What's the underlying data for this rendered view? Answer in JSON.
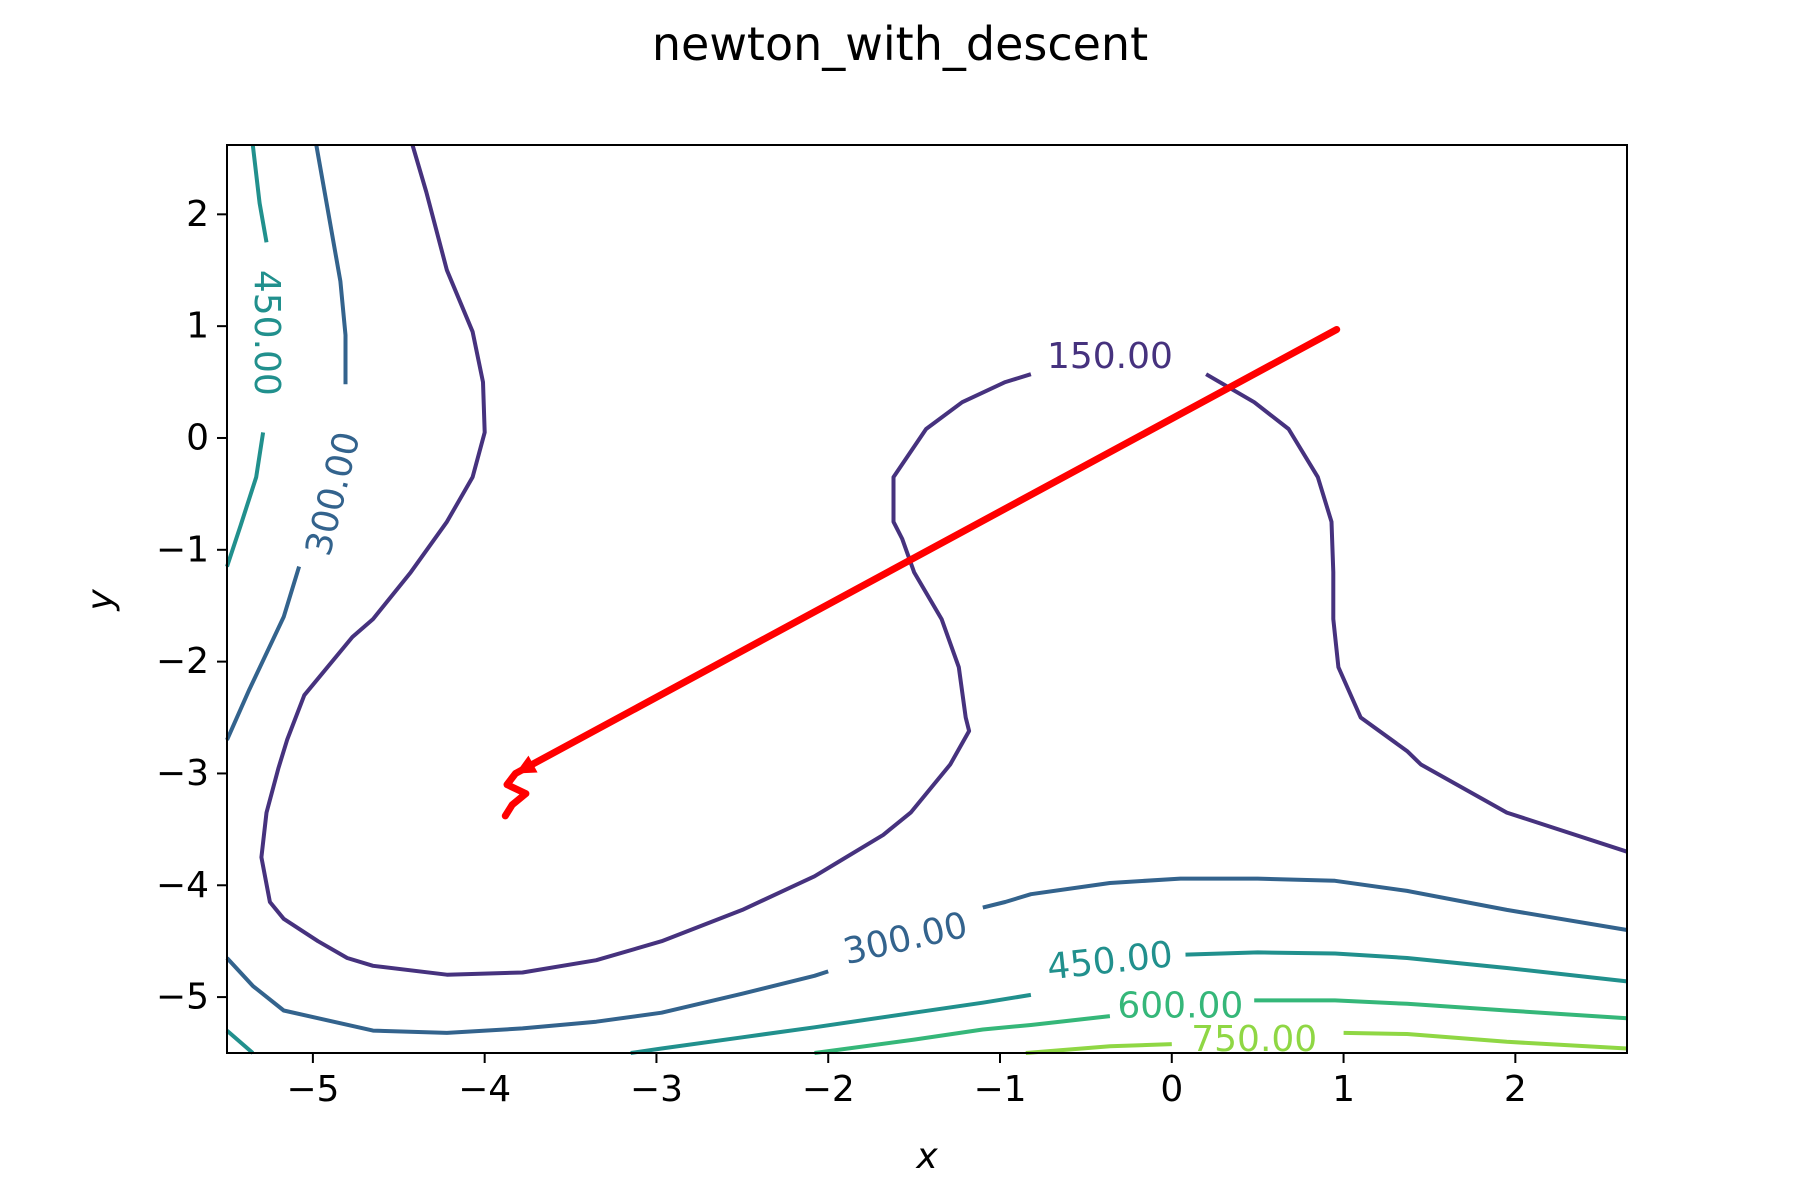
{
  "chart_data": {
    "type": "contour",
    "title": "newton_with_descent",
    "xlabel": "x",
    "ylabel": "y",
    "xlim": [
      -5.5,
      2.65
    ],
    "ylim": [
      -5.5,
      2.62
    ],
    "xticks": [
      {
        "value": -5,
        "label": "−5"
      },
      {
        "value": -4,
        "label": "−4"
      },
      {
        "value": -3,
        "label": "−3"
      },
      {
        "value": -2,
        "label": "−2"
      },
      {
        "value": -1,
        "label": "−1"
      },
      {
        "value": 0,
        "label": "0"
      },
      {
        "value": 1,
        "label": "1"
      },
      {
        "value": 2,
        "label": "2"
      }
    ],
    "yticks": [
      {
        "value": -5,
        "label": "−5"
      },
      {
        "value": -4,
        "label": "−4"
      },
      {
        "value": -3,
        "label": "−3"
      },
      {
        "value": -2,
        "label": "−2"
      },
      {
        "value": -1,
        "label": "−1"
      },
      {
        "value": 0,
        "label": "0"
      },
      {
        "value": 1,
        "label": "1"
      },
      {
        "value": 2,
        "label": "2"
      }
    ],
    "grid": false,
    "levels": [
      {
        "level": 150,
        "label": "150.00",
        "color": "#46327e",
        "paths": [
          [
            [
              -4.42,
              2.62
            ],
            [
              -4.34,
              2.2
            ],
            [
              -4.22,
              1.5
            ],
            [
              -4.07,
              0.95
            ],
            [
              -4.01,
              0.5
            ],
            [
              -4.0,
              0.05
            ],
            [
              -4.07,
              -0.35
            ],
            [
              -4.22,
              -0.75
            ],
            [
              -4.43,
              -1.2
            ],
            [
              -4.65,
              -1.62
            ],
            [
              -4.77,
              -1.78
            ],
            [
              -5.05,
              -2.3
            ],
            [
              -5.15,
              -2.7
            ],
            [
              -5.2,
              -2.95
            ],
            [
              -5.27,
              -3.35
            ],
            [
              -5.3,
              -3.75
            ],
            [
              -5.25,
              -4.15
            ],
            [
              -5.17,
              -4.3
            ],
            [
              -4.97,
              -4.5
            ],
            [
              -4.8,
              -4.65
            ],
            [
              -4.65,
              -4.72
            ],
            [
              -4.22,
              -4.8
            ],
            [
              -3.78,
              -4.78
            ],
            [
              -3.35,
              -4.67
            ],
            [
              -2.97,
              -4.5
            ],
            [
              -2.5,
              -4.22
            ],
            [
              -2.08,
              -3.92
            ],
            [
              -1.95,
              -3.8
            ],
            [
              -1.68,
              -3.55
            ],
            [
              -1.52,
              -3.35
            ],
            [
              -1.29,
              -2.92
            ],
            [
              -1.18,
              -2.62
            ],
            [
              -1.2,
              -2.5
            ],
            [
              -1.24,
              -2.05
            ],
            [
              -1.34,
              -1.62
            ],
            [
              -1.5,
              -1.2
            ],
            [
              -1.57,
              -0.9
            ],
            [
              -1.62,
              -0.75
            ],
            [
              -1.62,
              -0.35
            ],
            [
              -1.43,
              0.08
            ],
            [
              -1.22,
              0.32
            ],
            [
              -0.97,
              0.5
            ],
            [
              -0.82,
              0.57
            ]
          ],
          [
            [
              0.2,
              0.57
            ],
            [
              0.48,
              0.32
            ],
            [
              0.68,
              0.08
            ],
            [
              0.85,
              -0.35
            ],
            [
              0.93,
              -0.75
            ],
            [
              0.94,
              -1.2
            ],
            [
              0.94,
              -1.62
            ],
            [
              0.97,
              -2.05
            ],
            [
              1.1,
              -2.5
            ],
            [
              1.37,
              -2.8
            ],
            [
              1.45,
              -2.92
            ],
            [
              1.95,
              -3.35
            ],
            [
              2.65,
              -3.7
            ]
          ]
        ],
        "labels_at": [
          {
            "x": -0.36,
            "y": 0.73,
            "rotate": 0
          }
        ]
      },
      {
        "level": 300,
        "label": "300.00",
        "color": "#33638d",
        "paths": [
          [
            [
              -4.98,
              2.62
            ],
            [
              -4.92,
              2.1
            ],
            [
              -4.84,
              1.4
            ],
            [
              -4.81,
              0.92
            ],
            [
              -4.81,
              0.48
            ]
          ],
          [
            [
              -5.08,
              -1.15
            ],
            [
              -5.17,
              -1.6
            ],
            [
              -5.37,
              -2.25
            ],
            [
              -5.5,
              -2.7
            ]
          ],
          [
            [
              -5.5,
              -4.65
            ],
            [
              -5.35,
              -4.9
            ],
            [
              -5.17,
              -5.12
            ],
            [
              -4.65,
              -5.3
            ],
            [
              -4.22,
              -5.32
            ],
            [
              -3.78,
              -5.28
            ],
            [
              -3.35,
              -5.22
            ],
            [
              -2.97,
              -5.14
            ],
            [
              -2.5,
              -4.97
            ],
            [
              -2.08,
              -4.81
            ],
            [
              -2.0,
              -4.77
            ]
          ],
          [
            [
              -1.1,
              -4.2
            ],
            [
              -0.97,
              -4.15
            ],
            [
              -0.82,
              -4.08
            ],
            [
              -0.36,
              -3.98
            ],
            [
              0.05,
              -3.94
            ],
            [
              0.5,
              -3.94
            ],
            [
              0.95,
              -3.96
            ],
            [
              1.37,
              -4.05
            ],
            [
              1.95,
              -4.22
            ],
            [
              2.65,
              -4.4
            ]
          ]
        ],
        "labels_at": [
          {
            "x": -4.88,
            "y": -0.5,
            "rotate": -76
          },
          {
            "x": -1.55,
            "y": -4.48,
            "rotate": -13
          }
        ]
      },
      {
        "level": 450,
        "label": "450.00",
        "color": "#21908d",
        "paths": [
          [
            [
              -5.35,
              2.62
            ],
            [
              -5.31,
              2.1
            ],
            [
              -5.27,
              1.75
            ]
          ],
          [
            [
              -5.29,
              0.05
            ],
            [
              -5.33,
              -0.35
            ],
            [
              -5.42,
              -0.78
            ],
            [
              -5.5,
              -1.15
            ]
          ],
          [
            [
              -5.5,
              -5.3
            ],
            [
              -5.35,
              -5.5
            ]
          ],
          [
            [
              -3.15,
              -5.5
            ],
            [
              -2.97,
              -5.46
            ],
            [
              -2.5,
              -5.36
            ],
            [
              -2.08,
              -5.27
            ],
            [
              -1.5,
              -5.14
            ],
            [
              -1.1,
              -5.05
            ],
            [
              -0.82,
              -4.98
            ]
          ],
          [
            [
              0.08,
              -4.62
            ],
            [
              0.5,
              -4.6
            ],
            [
              0.95,
              -4.61
            ],
            [
              1.37,
              -4.65
            ],
            [
              1.95,
              -4.74
            ],
            [
              2.65,
              -4.86
            ]
          ]
        ],
        "labels_at": [
          {
            "x": -5.27,
            "y": 0.94,
            "rotate": 90
          },
          {
            "x": -0.36,
            "y": -4.68,
            "rotate": -6
          }
        ]
      },
      {
        "level": 600,
        "label": "600.00",
        "color": "#35b779",
        "paths": [
          [
            [
              -2.08,
              -5.5
            ],
            [
              -1.5,
              -5.38
            ],
            [
              -1.1,
              -5.29
            ],
            [
              -0.82,
              -5.25
            ],
            [
              -0.36,
              -5.17
            ]
          ],
          [
            [
              0.48,
              -5.03
            ],
            [
              0.95,
              -5.03
            ],
            [
              1.37,
              -5.06
            ],
            [
              1.95,
              -5.12
            ],
            [
              2.65,
              -5.19
            ]
          ]
        ],
        "labels_at": [
          {
            "x": 0.05,
            "y": -5.08,
            "rotate": 0
          }
        ]
      },
      {
        "level": 750,
        "label": "750.00",
        "color": "#8fd744",
        "paths": [
          [
            [
              -0.85,
              -5.5
            ],
            [
              -0.36,
              -5.44
            ],
            [
              0.0,
              -5.42
            ]
          ],
          [
            [
              1.0,
              -5.32
            ],
            [
              1.37,
              -5.33
            ],
            [
              1.95,
              -5.4
            ],
            [
              2.65,
              -5.46
            ]
          ]
        ],
        "labels_at": [
          {
            "x": 0.48,
            "y": -5.38,
            "rotate": 0
          }
        ]
      }
    ],
    "series": [
      {
        "type": "path",
        "color": "#ff0000",
        "points": [
          [
            0.96,
            0.97
          ],
          [
            -3.82,
            -3.0
          ],
          [
            -3.87,
            -3.1
          ],
          [
            -3.76,
            -3.18
          ],
          [
            -3.84,
            -3.28
          ],
          [
            -3.88,
            -3.38
          ]
        ]
      }
    ]
  }
}
